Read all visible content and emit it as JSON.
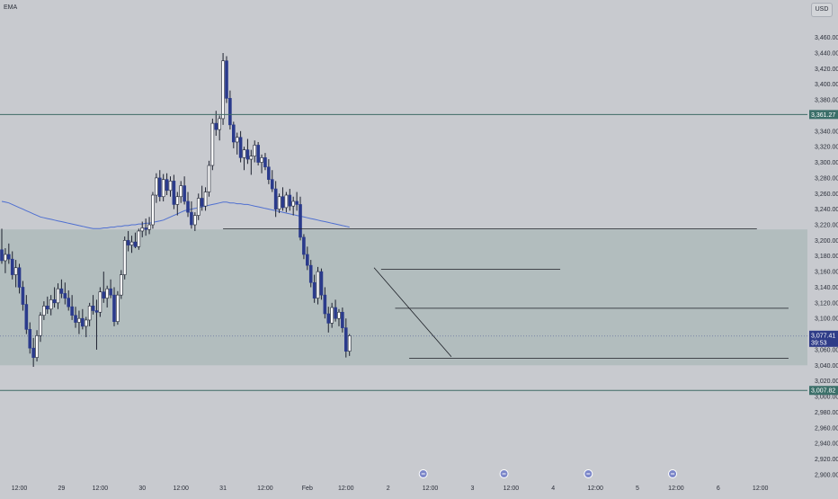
{
  "indicator_label": "EMA",
  "currency_label": "USD",
  "colors": {
    "background": "#c8cacf",
    "zone": "#aebbbb",
    "candle_up": "#ffffff",
    "candle_down": "#2a3a8c",
    "wick": "#1e2230",
    "ema": "#4f6fd0",
    "level": "#3f6b66",
    "trendline": "#1c1f26",
    "axis_text": "#2a2e39",
    "badge": "#3b6f69",
    "price_badge": "#2f3c88"
  },
  "chart_data": {
    "type": "candlestick",
    "title": "",
    "xlabel": "",
    "ylabel": "",
    "ylim": [
      2886,
      3478
    ],
    "y_ticks": [
      3460,
      3440,
      3420,
      3400,
      3380,
      3360,
      3340,
      3320,
      3300,
      3280,
      3260,
      3240,
      3220,
      3200,
      3180,
      3160,
      3140,
      3120,
      3100,
      3080,
      3060,
      3040,
      3020,
      3000,
      2980,
      2960,
      2940,
      2920,
      2900
    ],
    "y_tick_labels": [
      "3,460.00",
      "3,440.00",
      "3,420.00",
      "3,400.00",
      "3,380.00",
      "3,360.00",
      "3,340.00",
      "3,320.00",
      "3,300.00",
      "3,280.00",
      "3,260.00",
      "3,240.00",
      "3,220.00",
      "3,200.00",
      "3,180.00",
      "3,160.00",
      "3,140.00",
      "3,120.00",
      "3,100.00",
      "3,080.00",
      "3,060.00",
      "3,040.00",
      "3,020.00",
      "3,000.00",
      "2,980.00",
      "2,960.00",
      "2,940.00",
      "2,920.00",
      "2,900.00"
    ],
    "x_ticks": [
      {
        "label": "12:00",
        "i": 5
      },
      {
        "label": "29",
        "i": 17
      },
      {
        "label": "12:00",
        "i": 28
      },
      {
        "label": "30",
        "i": 40
      },
      {
        "label": "12:00",
        "i": 51
      },
      {
        "label": "31",
        "i": 63
      },
      {
        "label": "12:00",
        "i": 75
      },
      {
        "label": "Feb",
        "i": 87
      },
      {
        "label": "12:00",
        "i": 98
      },
      {
        "label": "2",
        "i": 110
      },
      {
        "label": "12:00",
        "i": 122
      },
      {
        "label": "3",
        "i": 134
      },
      {
        "label": "12:00",
        "i": 145
      },
      {
        "label": "4",
        "i": 157
      },
      {
        "label": "12:00",
        "i": 169
      },
      {
        "label": "5",
        "i": 181
      },
      {
        "label": "12:00",
        "i": 192
      },
      {
        "label": "6",
        "i": 204
      },
      {
        "label": "12:00",
        "i": 216
      }
    ],
    "event_markers": [
      {
        "i": 120,
        "icon": "flag-icon"
      },
      {
        "i": 143,
        "icon": "flag-icon"
      },
      {
        "i": 167,
        "icon": "flag-icon"
      },
      {
        "i": 191,
        "icon": "flag-icon"
      }
    ],
    "candles": [
      [
        3188,
        3215,
        3170,
        3174
      ],
      [
        3174,
        3190,
        3158,
        3182
      ],
      [
        3182,
        3196,
        3170,
        3176
      ],
      [
        3176,
        3186,
        3150,
        3156
      ],
      [
        3156,
        3175,
        3140,
        3165
      ],
      [
        3165,
        3170,
        3132,
        3140
      ],
      [
        3140,
        3148,
        3110,
        3118
      ],
      [
        3118,
        3130,
        3080,
        3086
      ],
      [
        3086,
        3095,
        3055,
        3062
      ],
      [
        3062,
        3075,
        3038,
        3050
      ],
      [
        3050,
        3085,
        3045,
        3078
      ],
      [
        3078,
        3108,
        3070,
        3104
      ],
      [
        3104,
        3122,
        3098,
        3116
      ],
      [
        3116,
        3128,
        3106,
        3112
      ],
      [
        3112,
        3130,
        3104,
        3124
      ],
      [
        3124,
        3140,
        3114,
        3120
      ],
      [
        3120,
        3145,
        3112,
        3138
      ],
      [
        3138,
        3150,
        3126,
        3132
      ],
      [
        3132,
        3146,
        3118,
        3126
      ],
      [
        3126,
        3136,
        3110,
        3115
      ],
      [
        3115,
        3130,
        3098,
        3104
      ],
      [
        3104,
        3115,
        3088,
        3095
      ],
      [
        3095,
        3110,
        3080,
        3100
      ],
      [
        3100,
        3112,
        3086,
        3090
      ],
      [
        3090,
        3102,
        3076,
        3098
      ],
      [
        3098,
        3120,
        3090,
        3116
      ],
      [
        3116,
        3130,
        3105,
        3110
      ],
      [
        3110,
        3124,
        3060,
        3108
      ],
      [
        3108,
        3140,
        3102,
        3134
      ],
      [
        3134,
        3160,
        3120,
        3126
      ],
      [
        3126,
        3142,
        3114,
        3138
      ],
      [
        3138,
        3150,
        3126,
        3130
      ],
      [
        3130,
        3140,
        3090,
        3096
      ],
      [
        3096,
        3135,
        3092,
        3130
      ],
      [
        3130,
        3162,
        3125,
        3156
      ],
      [
        3156,
        3205,
        3150,
        3200
      ],
      [
        3200,
        3212,
        3186,
        3194
      ],
      [
        3194,
        3206,
        3184,
        3198
      ],
      [
        3198,
        3210,
        3190,
        3192
      ],
      [
        3192,
        3215,
        3188,
        3212
      ],
      [
        3212,
        3224,
        3204,
        3216
      ],
      [
        3216,
        3228,
        3206,
        3214
      ],
      [
        3214,
        3230,
        3208,
        3220
      ],
      [
        3220,
        3262,
        3215,
        3258
      ],
      [
        3258,
        3286,
        3248,
        3280
      ],
      [
        3280,
        3290,
        3250,
        3256
      ],
      [
        3256,
        3285,
        3250,
        3278
      ],
      [
        3278,
        3286,
        3258,
        3264
      ],
      [
        3264,
        3282,
        3256,
        3276
      ],
      [
        3276,
        3284,
        3240,
        3246
      ],
      [
        3246,
        3262,
        3232,
        3256
      ],
      [
        3256,
        3276,
        3248,
        3270
      ],
      [
        3270,
        3282,
        3246,
        3250
      ],
      [
        3250,
        3262,
        3230,
        3236
      ],
      [
        3236,
        3250,
        3215,
        3220
      ],
      [
        3220,
        3236,
        3212,
        3232
      ],
      [
        3232,
        3260,
        3226,
        3254
      ],
      [
        3254,
        3270,
        3238,
        3244
      ],
      [
        3244,
        3268,
        3238,
        3262
      ],
      [
        3262,
        3302,
        3256,
        3296
      ],
      [
        3296,
        3356,
        3290,
        3350
      ],
      [
        3350,
        3366,
        3334,
        3342
      ],
      [
        3342,
        3360,
        3328,
        3356
      ],
      [
        3356,
        3440,
        3348,
        3430
      ],
      [
        3430,
        3436,
        3376,
        3382
      ],
      [
        3382,
        3392,
        3342,
        3348
      ],
      [
        3348,
        3352,
        3318,
        3326
      ],
      [
        3326,
        3338,
        3310,
        3332
      ],
      [
        3332,
        3340,
        3300,
        3306
      ],
      [
        3306,
        3320,
        3290,
        3316
      ],
      [
        3316,
        3330,
        3298,
        3304
      ],
      [
        3304,
        3316,
        3284,
        3308
      ],
      [
        3308,
        3328,
        3300,
        3322
      ],
      [
        3322,
        3326,
        3296,
        3300
      ],
      [
        3300,
        3310,
        3286,
        3306
      ],
      [
        3306,
        3312,
        3290,
        3294
      ],
      [
        3294,
        3304,
        3272,
        3278
      ],
      [
        3278,
        3290,
        3262,
        3266
      ],
      [
        3266,
        3276,
        3230,
        3240
      ],
      [
        3240,
        3260,
        3235,
        3256
      ],
      [
        3256,
        3268,
        3238,
        3242
      ],
      [
        3242,
        3262,
        3236,
        3258
      ],
      [
        3258,
        3266,
        3238,
        3244
      ],
      [
        3244,
        3256,
        3232,
        3250
      ],
      [
        3250,
        3262,
        3238,
        3246
      ],
      [
        3246,
        3256,
        3200,
        3204
      ],
      [
        3204,
        3208,
        3176,
        3182
      ],
      [
        3182,
        3192,
        3162,
        3168
      ],
      [
        3168,
        3175,
        3140,
        3146
      ],
      [
        3146,
        3156,
        3120,
        3126
      ],
      [
        3126,
        3166,
        3118,
        3160
      ],
      [
        3160,
        3164,
        3124,
        3130
      ],
      [
        3130,
        3140,
        3100,
        3106
      ],
      [
        3106,
        3115,
        3082,
        3094
      ],
      [
        3094,
        3120,
        3088,
        3114
      ],
      [
        3114,
        3124,
        3096,
        3100
      ],
      [
        3100,
        3112,
        3090,
        3108
      ],
      [
        3108,
        3114,
        3082,
        3088
      ],
      [
        3088,
        3100,
        3050,
        3058
      ],
      [
        3058,
        3080,
        3052,
        3078
      ]
    ],
    "ema": [
      3250,
      3249,
      3248,
      3246,
      3244,
      3242,
      3240,
      3238,
      3236,
      3234,
      3232,
      3230,
      3229,
      3228,
      3227,
      3226,
      3225,
      3224,
      3223,
      3222,
      3221,
      3220,
      3219,
      3218,
      3217,
      3216,
      3215,
      3215,
      3215,
      3216,
      3216,
      3217,
      3217,
      3218,
      3218,
      3219,
      3219,
      3220,
      3220,
      3221,
      3221,
      3222,
      3222,
      3223,
      3224,
      3225,
      3226,
      3228,
      3230,
      3232,
      3234,
      3236,
      3238,
      3239,
      3240,
      3241,
      3242,
      3243,
      3244,
      3245,
      3246,
      3247,
      3248,
      3249,
      3249,
      3248,
      3248,
      3247,
      3247,
      3246,
      3246,
      3245,
      3244,
      3243,
      3242,
      3241,
      3240,
      3239,
      3238,
      3237,
      3236,
      3235,
      3234,
      3233,
      3232,
      3231,
      3230,
      3229,
      3228,
      3227,
      3226,
      3225,
      3224,
      3223,
      3222,
      3221,
      3220,
      3219,
      3218,
      3217
    ],
    "zone": {
      "from": 3040,
      "to": 3214
    },
    "levels": [
      {
        "price": 3361.27,
        "label": "3,361.27"
      },
      {
        "price": 3007.82,
        "label": "3,007.82"
      }
    ],
    "segments": [
      {
        "from_i": 63,
        "to_i": 215,
        "price": 3215
      },
      {
        "from_i": 108,
        "to_i": 159,
        "price": 3163
      },
      {
        "from_i": 112,
        "to_i": 224,
        "price": 3113
      },
      {
        "from_i": 116,
        "to_i": 224,
        "price": 3049
      }
    ],
    "trendline": {
      "from_i": 106,
      "from_price": 3165,
      "to_i": 128,
      "to_price": 3051
    },
    "current_price": {
      "price": 3077.41,
      "label": "3,077.41",
      "countdown": "39:53"
    }
  }
}
